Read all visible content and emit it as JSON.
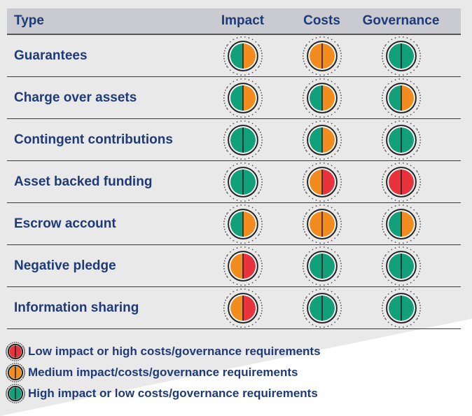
{
  "colors": {
    "red": "#e8333d",
    "orange": "#f28c1f",
    "green": "#12a07a",
    "navy": "#1e3a78"
  },
  "headers": [
    "Type",
    "Impact",
    "Costs",
    "Governance"
  ],
  "rows": [
    {
      "name": "Guarantees",
      "ratings": [
        "green-orange",
        "orange",
        "green"
      ]
    },
    {
      "name": "Charge over assets",
      "ratings": [
        "green-orange",
        "green-orange",
        "green-orange"
      ]
    },
    {
      "name": "Contingent contributions",
      "ratings": [
        "green",
        "green-orange",
        "green"
      ]
    },
    {
      "name": "Asset backed funding",
      "ratings": [
        "green",
        "orange-red",
        "red"
      ]
    },
    {
      "name": "Escrow account",
      "ratings": [
        "green-orange",
        "orange",
        "green-orange"
      ]
    },
    {
      "name": "Negative pledge",
      "ratings": [
        "orange-red",
        "green",
        "green"
      ]
    },
    {
      "name": "Information sharing",
      "ratings": [
        "orange-red",
        "green",
        "green"
      ]
    }
  ],
  "legend": [
    {
      "color": "red",
      "label": "Low impact or high costs/governance requirements"
    },
    {
      "color": "orange",
      "label": "Medium impact/costs/governance requirements"
    },
    {
      "color": "green",
      "label": "High impact or low costs/governance requirements"
    }
  ]
}
